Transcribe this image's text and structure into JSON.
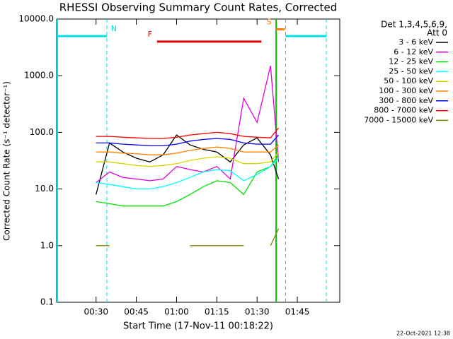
{
  "chart_data": {
    "type": "line",
    "title": "RHESSI Observing Summary Count Rates, Corrected",
    "x_label": "Start Time (17-Nov-11 00:18:22)",
    "y_label": "Corrected Count Rate (s⁻¹ detector⁻¹)",
    "legend_title": [
      "Det 1,3,4,5,6,9,",
      "Att 0"
    ],
    "footer": "22-Oct-2021 12:38",
    "log_y": true,
    "xlim": [
      15.3,
      120.8
    ],
    "xticks": [
      {
        "value": 30,
        "label": "00:30"
      },
      {
        "value": 45,
        "label": "00:45"
      },
      {
        "value": 60,
        "label": "01:00"
      },
      {
        "value": 75,
        "label": "01:15"
      },
      {
        "value": 90,
        "label": "01:30"
      },
      {
        "value": 105,
        "label": "01:45"
      }
    ],
    "ylim": [
      0.1,
      10000
    ],
    "yticks": [
      {
        "value": 0.1,
        "label": "0.1"
      },
      {
        "value": 1,
        "label": "1.0"
      },
      {
        "value": 10,
        "label": "10.0"
      },
      {
        "value": 100,
        "label": "100.0"
      },
      {
        "value": 1000,
        "label": "1000.0"
      },
      {
        "value": 10000,
        "label": "10000.0"
      }
    ],
    "x": [
      30,
      35,
      40,
      45,
      50,
      55,
      60,
      65,
      70,
      75,
      80,
      85,
      90,
      95,
      98
    ],
    "series": [
      {
        "name": "3 - 6 keV",
        "color": "#000000",
        "values": [
          8,
          65,
          45,
          35,
          30,
          40,
          90,
          60,
          50,
          45,
          30,
          60,
          80,
          40,
          15
        ]
      },
      {
        "name": "6 - 12 keV",
        "color": "#e000e0",
        "values": [
          13,
          20,
          16,
          15,
          14,
          15,
          25,
          22,
          20,
          25,
          15,
          400,
          150,
          1500,
          30
        ]
      },
      {
        "name": "12 - 25 keV",
        "color": "#00e000",
        "values": [
          6,
          5.5,
          5,
          5,
          5,
          5,
          6,
          8,
          11,
          14,
          13,
          8,
          20,
          25,
          40
        ]
      },
      {
        "name": "25 - 50 keV",
        "color": "#00ffff",
        "values": [
          13,
          12,
          11,
          10,
          10,
          11,
          13,
          16,
          20,
          22,
          21,
          14,
          18,
          25,
          35
        ]
      },
      {
        "name": "50 - 100 keV",
        "color": "#d8d800",
        "values": [
          30,
          30,
          28,
          26,
          25,
          26,
          28,
          32,
          35,
          37,
          35,
          28,
          28,
          30,
          45
        ]
      },
      {
        "name": "100 - 300 keV",
        "color": "#ff8000",
        "values": [
          45,
          45,
          43,
          42,
          40,
          40,
          43,
          48,
          52,
          55,
          52,
          45,
          45,
          45,
          60
        ]
      },
      {
        "name": "300 - 800 keV",
        "color": "#0000ff",
        "values": [
          65,
          65,
          62,
          60,
          58,
          58,
          62,
          70,
          75,
          78,
          75,
          65,
          62,
          62,
          90
        ]
      },
      {
        "name": "800 - 7000 keV",
        "color": "#ff0000",
        "values": [
          85,
          85,
          82,
          80,
          78,
          78,
          82,
          90,
          95,
          100,
          95,
          85,
          82,
          80,
          120
        ]
      },
      {
        "name": "7000 - 15000 keV",
        "color": "#808000",
        "values": [
          1,
          1,
          null,
          null,
          null,
          null,
          null,
          1,
          1,
          1,
          1,
          1,
          null,
          1,
          2
        ]
      }
    ],
    "flags": [
      {
        "label": "N",
        "color": "#00e0e0",
        "level": 5000,
        "intervals": [
          [
            15.3,
            34
          ],
          [
            100.6,
            115.8
          ]
        ]
      },
      {
        "label": "F",
        "color": "#e00000",
        "level": 4000,
        "intervals": [
          [
            52.7,
            91.6
          ]
        ]
      },
      {
        "label": "S",
        "color": "#ff8000",
        "level": 6600,
        "intervals": [
          [
            97.1,
            100.3
          ]
        ]
      }
    ],
    "markers": [
      {
        "x": 34,
        "color": "#00e0e0",
        "dashed": true
      },
      {
        "x": 115.8,
        "color": "#00e0e0",
        "dashed": true
      },
      {
        "x": 100.6,
        "color": "#ff8000",
        "dashed": true
      },
      {
        "x": 97.1,
        "color": "#00c000",
        "dashed": false
      }
    ]
  }
}
